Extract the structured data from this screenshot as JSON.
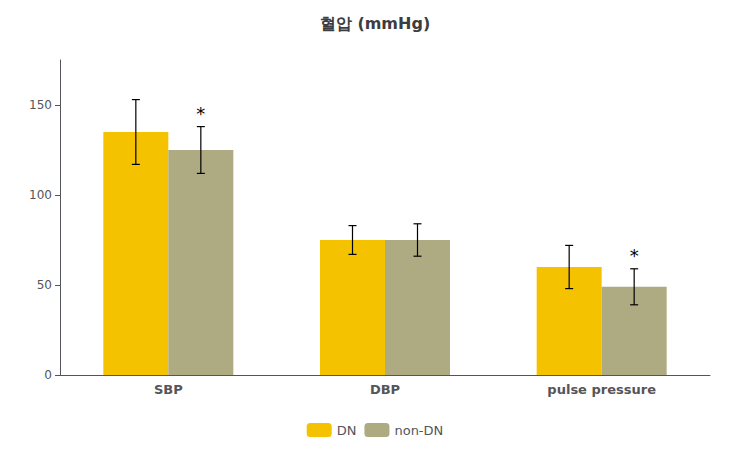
{
  "chart_data": {
    "type": "bar",
    "title": "혈압 (mmHg)",
    "categories": [
      "SBP",
      "DBP",
      "pulse pressure"
    ],
    "series": [
      {
        "name": "DN",
        "color": "#F5C200",
        "values": [
          135,
          75,
          60
        ],
        "errors": [
          18,
          8,
          12
        ]
      },
      {
        "name": "non-DN",
        "color": "#AEAA82",
        "values": [
          125,
          75,
          49
        ],
        "errors": [
          13,
          9,
          10
        ]
      }
    ],
    "ylim": [
      0,
      175
    ],
    "yticks": [
      0,
      50,
      100,
      150
    ],
    "grid": false,
    "legend": "bottom",
    "annotations": [
      {
        "text": "*",
        "category": "SBP",
        "series": "non-DN"
      },
      {
        "text": "*",
        "category": "pulse pressure",
        "series": "non-DN"
      }
    ]
  }
}
